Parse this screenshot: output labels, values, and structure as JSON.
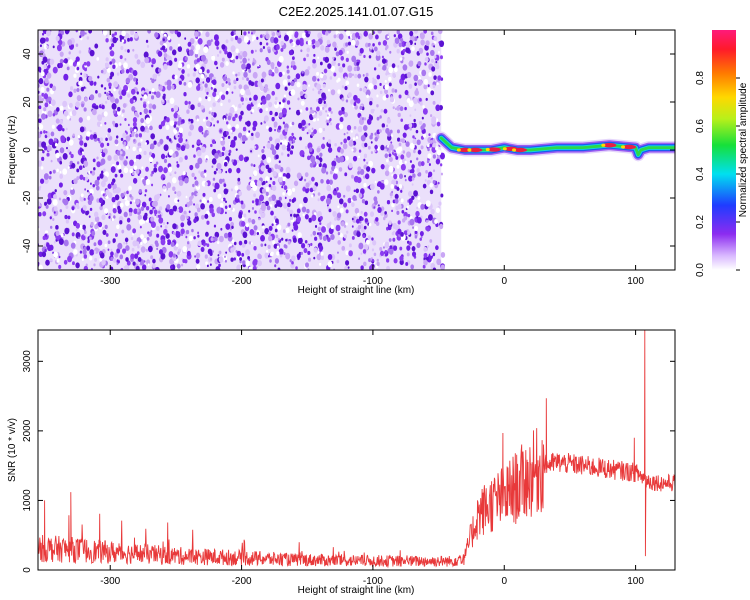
{
  "title": "C2E2.2025.141.01.07.G15",
  "colors": {
    "scatter": "#7b2be0",
    "ridge_core": "#e81e45",
    "ridge_mid": "#2bd84a",
    "ridge_outer": "#1a5af0",
    "snr_line": "#e8393a"
  },
  "chart_data": [
    {
      "type": "heatmap",
      "title": "C2E2.2025.141.01.07.G15",
      "xlabel": "Height of straight line (km)",
      "ylabel": "Frequency (Hz)",
      "xlim": [
        -355,
        130
      ],
      "ylim": [
        -50,
        50
      ],
      "x_ticks": [
        -300,
        -200,
        -100,
        0,
        100
      ],
      "x_tick_labels": [
        "-300",
        "-200",
        "-100",
        "0",
        "100"
      ],
      "y_ticks": [
        -40,
        -20,
        0,
        20,
        40
      ],
      "y_tick_labels": [
        "-40",
        "-20",
        "0",
        "20",
        "40"
      ],
      "colorbar": {
        "label": "Normalized spectral amplitude",
        "range": [
          0,
          1
        ],
        "ticks": [
          0.0,
          0.2,
          0.4,
          0.6,
          0.8
        ],
        "tick_labels": [
          "0.0",
          "0.2",
          "0.4",
          "0.6",
          "0.8"
        ]
      },
      "noise_region_x": [
        -355,
        -48
      ],
      "ridge": {
        "x": [
          -48,
          -44,
          -40,
          -30,
          -20,
          -10,
          0,
          10,
          20,
          40,
          60,
          80,
          100,
          102,
          104,
          110,
          130
        ],
        "freq": [
          5,
          3,
          1,
          0,
          0,
          0,
          1,
          0,
          0,
          1,
          1,
          2,
          1,
          -2,
          0,
          1,
          1
        ],
        "peak_amplitude_x": [
          -30,
          -22,
          -8,
          5,
          12,
          80,
          95
        ]
      }
    },
    {
      "type": "line",
      "xlabel": "Height of straight line (km)",
      "ylabel": "SNR (10 * v/v)",
      "xlim": [
        -355,
        130
      ],
      "ylim": [
        0,
        3450
      ],
      "x_ticks": [
        -300,
        -200,
        -100,
        0,
        100
      ],
      "x_tick_labels": [
        "-300",
        "-200",
        "-100",
        "0",
        "100"
      ],
      "y_ticks": [
        0,
        1000,
        2000,
        3000
      ],
      "y_tick_labels": [
        "0",
        "1000",
        "2000",
        "3000"
      ],
      "series": [
        {
          "x": [
            -355,
            -330,
            -300,
            -270,
            -240,
            -200,
            -160,
            -120,
            -80,
            -40,
            -30,
            -25,
            -20,
            -10,
            0,
            10,
            20,
            30,
            40,
            60,
            80,
            100,
            110,
            120,
            130
          ],
          "values": [
            320,
            300,
            260,
            230,
            200,
            180,
            150,
            140,
            130,
            130,
            200,
            500,
            800,
            950,
            1050,
            1200,
            1350,
            1500,
            1550,
            1500,
            1450,
            1400,
            1280,
            1250,
            1250
          ],
          "spikes": [
            {
              "x": -350,
              "value": 1000
            },
            {
              "x": -330,
              "value": 1120
            },
            {
              "x": -308,
              "value": 810
            },
            {
              "x": -1,
              "value": 1970
            },
            {
              "x": 32,
              "value": 2470
            },
            {
              "x": 99,
              "value": 1900
            },
            {
              "x": 107,
              "value": 3450
            },
            {
              "x": 107.5,
              "value": 200
            }
          ]
        }
      ]
    }
  ]
}
